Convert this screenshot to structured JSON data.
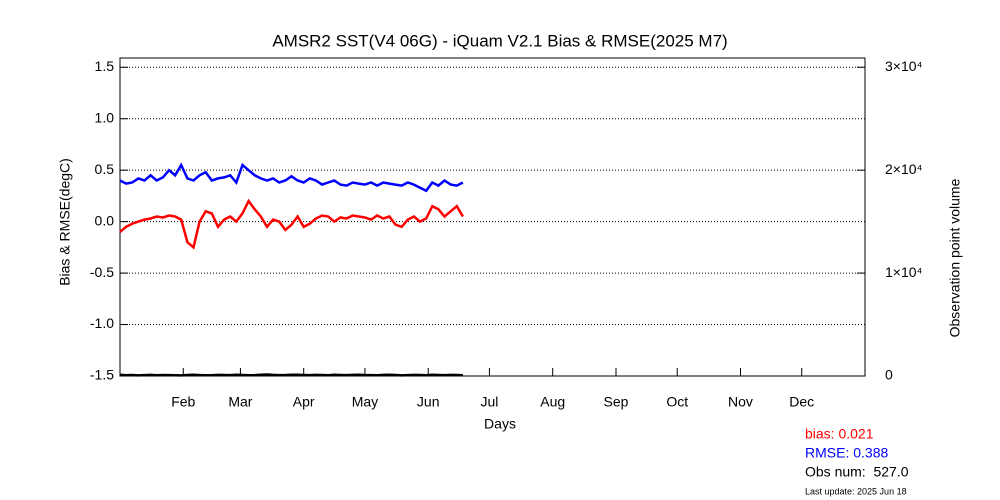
{
  "chart_data": {
    "type": "line",
    "title": "AMSR2 SST(V4 06G) - iQuam V2.1 Bias & RMSE(2025 M7)",
    "x_label": "Days",
    "y_label": "Bias & RMSE(degC)",
    "y2_label": "Observation point volume",
    "xlim": [
      1,
      366
    ],
    "xticks": [
      {
        "value": 32,
        "label": "Feb"
      },
      {
        "value": 60,
        "label": "Mar"
      },
      {
        "value": 91,
        "label": "Apr"
      },
      {
        "value": 121,
        "label": "May"
      },
      {
        "value": 152,
        "label": "Jun"
      },
      {
        "value": 182,
        "label": "Jul"
      },
      {
        "value": 213,
        "label": "Aug"
      },
      {
        "value": 244,
        "label": "Sep"
      },
      {
        "value": 274,
        "label": "Oct"
      },
      {
        "value": 305,
        "label": "Nov"
      },
      {
        "value": 335,
        "label": "Dec"
      }
    ],
    "ylim": [
      -1.5,
      1.59
    ],
    "yticks": [
      -1.5,
      {
        "value": -1,
        "label": "-1.0"
      },
      -0.5,
      {
        "value": 0,
        "label": "0.0"
      },
      0.5,
      {
        "value": 1,
        "label": "1.0"
      },
      1.5
    ],
    "y2lim": [
      0,
      30900
    ],
    "y2ticks": [
      0,
      {
        "value": 10000,
        "label": "1×10⁴"
      },
      {
        "value": 20000,
        "label": "2×10⁴"
      },
      {
        "value": 30000,
        "label": "3×10⁴"
      }
    ],
    "grid": true,
    "x": [
      1,
      4,
      7,
      10,
      13,
      16,
      19,
      22,
      25,
      28,
      31,
      34,
      37,
      40,
      43,
      46,
      49,
      52,
      55,
      58,
      61,
      64,
      67,
      70,
      73,
      76,
      79,
      82,
      85,
      88,
      91,
      94,
      97,
      100,
      103,
      106,
      109,
      112,
      115,
      118,
      121,
      124,
      127,
      130,
      133,
      136,
      139,
      142,
      145,
      148,
      151,
      154,
      157,
      160,
      163,
      166,
      169
    ],
    "series": [
      {
        "name": "bias",
        "color": "#ff0000",
        "values": [
          -0.1,
          -0.05,
          -0.02,
          0.0,
          0.02,
          0.03,
          0.05,
          0.04,
          0.06,
          0.05,
          0.02,
          -0.2,
          -0.25,
          0.0,
          0.1,
          0.08,
          -0.05,
          0.02,
          0.05,
          0.0,
          0.08,
          0.2,
          0.12,
          0.05,
          -0.05,
          0.02,
          0.0,
          -0.08,
          -0.03,
          0.05,
          -0.05,
          -0.02,
          0.03,
          0.06,
          0.05,
          0.0,
          0.04,
          0.03,
          0.06,
          0.05,
          0.04,
          0.02,
          0.06,
          0.03,
          0.05,
          -0.03,
          -0.05,
          0.02,
          0.05,
          0.0,
          0.03,
          0.15,
          0.12,
          0.05,
          0.1,
          0.15,
          0.05
        ]
      },
      {
        "name": "RMSE",
        "color": "#0000ff",
        "values": [
          0.4,
          0.37,
          0.38,
          0.42,
          0.4,
          0.45,
          0.4,
          0.43,
          0.5,
          0.45,
          0.55,
          0.42,
          0.4,
          0.45,
          0.48,
          0.4,
          0.42,
          0.43,
          0.45,
          0.38,
          0.55,
          0.5,
          0.45,
          0.42,
          0.4,
          0.42,
          0.38,
          0.4,
          0.44,
          0.4,
          0.38,
          0.42,
          0.4,
          0.36,
          0.38,
          0.4,
          0.36,
          0.35,
          0.38,
          0.37,
          0.36,
          0.38,
          0.35,
          0.38,
          0.37,
          0.36,
          0.35,
          0.38,
          0.36,
          0.33,
          0.3,
          0.38,
          0.35,
          0.4,
          0.36,
          0.35,
          0.38
        ]
      },
      {
        "name": "Obs",
        "color": "#000000",
        "axis": "y2",
        "values": [
          120,
          80,
          100,
          60,
          90,
          110,
          70,
          100,
          90,
          80,
          60,
          100,
          120,
          90,
          70,
          80,
          110,
          100,
          90,
          130,
          100,
          80,
          90,
          120,
          150,
          110,
          90,
          100,
          130,
          120,
          100,
          90,
          110,
          100,
          80,
          120,
          100,
          90,
          110,
          130,
          100,
          90,
          80,
          110,
          120,
          100,
          60,
          90,
          110,
          100,
          80,
          120,
          100,
          90,
          110,
          100,
          80
        ]
      }
    ],
    "annotations": [
      {
        "text": "bias: 0.021",
        "color": "#ff0000"
      },
      {
        "text": "RMSE: 0.388",
        "color": "#0000ff"
      },
      {
        "text": "Obs num:  527.0",
        "color": "#000000"
      },
      {
        "text": "Last update: 2025 Jun 18",
        "color": "#000000"
      }
    ]
  }
}
